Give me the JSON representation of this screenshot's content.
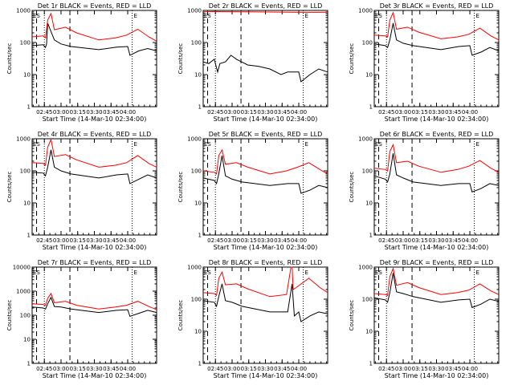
{
  "colors": {
    "events": "#000000",
    "lld": "#ff0000",
    "axes": "#000000",
    "background": "#ffffff"
  },
  "chart_data": [
    {
      "type": "line",
      "title": "Det 1r BLACK = Events, RED = LLD",
      "ylabel": "Counts/sec",
      "xlabel": "Start Time (14-Mar-10 02:34:00)",
      "yscale": "log",
      "ylim": [
        1,
        1000
      ],
      "ytick_labels": [
        "1",
        "10",
        "100",
        "1000"
      ],
      "xtick_labels": [
        "02:45",
        "03:00",
        "03:15",
        "03:30",
        "03:45",
        "04:00"
      ],
      "markers": [
        "ES",
        "E"
      ],
      "series": [
        {
          "name": "Events",
          "x": [
            0,
            10,
            12,
            13,
            14,
            20,
            26,
            35,
            60,
            76,
            86,
            88,
            96,
            104,
            112
          ],
          "y": [
            80,
            85,
            70,
            90,
            400,
            120,
            90,
            75,
            60,
            72,
            75,
            40,
            55,
            65,
            55
          ]
        },
        {
          "name": "LLD",
          "x": [
            0,
            10,
            12,
            14,
            17,
            20,
            30,
            40,
            60,
            75,
            85,
            95,
            105,
            112
          ],
          "y": [
            150,
            160,
            140,
            500,
            800,
            250,
            300,
            200,
            120,
            140,
            170,
            260,
            150,
            110
          ]
        }
      ]
    },
    {
      "type": "line",
      "title": "Det 2r BLACK = Events, RED = LLD",
      "ylabel": "Counts/sec",
      "xlabel": "Start Time (14-Mar-10 02:34:00)",
      "yscale": "log",
      "ylim": [
        1,
        1000
      ],
      "ytick_labels": [
        "1",
        "10",
        "100",
        "1000"
      ],
      "xtick_labels": [
        "02:45",
        "03:00",
        "03:15",
        "03:30",
        "03:45",
        "04:00"
      ],
      "markers": [
        "ES",
        "E"
      ],
      "series": [
        {
          "name": "Events",
          "x": [
            0,
            5,
            10,
            13,
            15,
            20,
            25,
            30,
            40,
            50,
            60,
            70,
            76,
            86,
            88,
            96,
            104,
            112
          ],
          "y": [
            25,
            22,
            30,
            12,
            22,
            25,
            40,
            30,
            20,
            18,
            15,
            10,
            12,
            12,
            6,
            10,
            15,
            12
          ]
        },
        {
          "name": "LLD",
          "x": [
            0,
            10,
            20,
            40,
            60,
            80,
            100,
            112
          ],
          "y": [
            900,
            920,
            910,
            900,
            890,
            880,
            870,
            880
          ]
        }
      ]
    },
    {
      "type": "line",
      "title": "Det 3r BLACK = Events, RED = LLD",
      "ylabel": "Counts/sec",
      "xlabel": "Start Time (14-Mar-10 02:34:00)",
      "yscale": "log",
      "ylim": [
        1,
        1000
      ],
      "ytick_labels": [
        "1",
        "10",
        "100",
        "1000"
      ],
      "xtick_labels": [
        "02:45",
        "03:00",
        "03:15",
        "03:30",
        "03:45",
        "04:00"
      ],
      "markers": [
        "ES",
        "E"
      ],
      "series": [
        {
          "name": "Events",
          "x": [
            0,
            10,
            12,
            14,
            17,
            20,
            26,
            35,
            60,
            76,
            86,
            88,
            96,
            104,
            112
          ],
          "y": [
            90,
            80,
            70,
            120,
            400,
            120,
            95,
            80,
            60,
            75,
            80,
            40,
            50,
            70,
            55
          ]
        },
        {
          "name": "LLD",
          "x": [
            0,
            10,
            12,
            14,
            17,
            20,
            30,
            40,
            60,
            75,
            85,
            95,
            105,
            112
          ],
          "y": [
            170,
            160,
            150,
            500,
            850,
            260,
            300,
            210,
            130,
            150,
            180,
            280,
            160,
            120
          ]
        }
      ]
    },
    {
      "type": "line",
      "title": "Det 4r BLACK = Events, RED = LLD",
      "ylabel": "Counts/sec",
      "xlabel": "Start Time (14-Mar-10 02:34:00)",
      "yscale": "log",
      "ylim": [
        1,
        1000
      ],
      "ytick_labels": [
        "1",
        "10",
        "100",
        "1000"
      ],
      "xtick_labels": [
        "02:45",
        "03:00",
        "03:15",
        "03:30",
        "03:45",
        "04:00"
      ],
      "markers": [
        "ES",
        "E"
      ],
      "series": [
        {
          "name": "Events",
          "x": [
            0,
            10,
            12,
            14,
            17,
            20,
            26,
            35,
            60,
            76,
            86,
            88,
            96,
            104,
            112
          ],
          "y": [
            90,
            85,
            70,
            130,
            450,
            130,
            100,
            80,
            60,
            75,
            80,
            40,
            55,
            75,
            60
          ]
        },
        {
          "name": "LLD",
          "x": [
            0,
            10,
            12,
            14,
            17,
            20,
            30,
            40,
            60,
            75,
            85,
            95,
            105,
            112
          ],
          "y": [
            180,
            170,
            150,
            550,
            950,
            280,
            320,
            220,
            130,
            150,
            180,
            300,
            170,
            130
          ]
        }
      ]
    },
    {
      "type": "line",
      "title": "Det 5r BLACK = Events, RED = LLD",
      "ylabel": "Counts/sec",
      "xlabel": "Start Time (14-Mar-10 02:34:00)",
      "yscale": "log",
      "ylim": [
        1,
        1000
      ],
      "ytick_labels": [
        "1",
        "10",
        "100",
        "1000"
      ],
      "xtick_labels": [
        "02:45",
        "03:00",
        "03:15",
        "03:30",
        "03:45",
        "04:00"
      ],
      "markers": [
        "ES",
        "E"
      ],
      "series": [
        {
          "name": "Events",
          "x": [
            0,
            10,
            12,
            14,
            17,
            20,
            26,
            35,
            60,
            76,
            86,
            88,
            96,
            104,
            112
          ],
          "y": [
            60,
            50,
            40,
            80,
            300,
            70,
            55,
            45,
            35,
            40,
            40,
            20,
            25,
            35,
            30
          ]
        },
        {
          "name": "LLD",
          "x": [
            0,
            10,
            12,
            14,
            17,
            20,
            30,
            40,
            60,
            75,
            85,
            95,
            105,
            112
          ],
          "y": [
            100,
            90,
            80,
            300,
            450,
            160,
            180,
            130,
            80,
            100,
            130,
            180,
            110,
            80
          ]
        }
      ]
    },
    {
      "type": "line",
      "title": "Det 6r BLACK = Events, RED = LLD",
      "ylabel": "Counts/sec",
      "xlabel": "Start Time (14-Mar-10 02:34:00)",
      "yscale": "log",
      "ylim": [
        1,
        1000
      ],
      "ytick_labels": [
        "1",
        "10",
        "100",
        "1000"
      ],
      "xtick_labels": [
        "02:45",
        "03:00",
        "03:15",
        "03:30",
        "03:45",
        "04:00"
      ],
      "markers": [
        "ES",
        "E"
      ],
      "series": [
        {
          "name": "Events",
          "x": [
            0,
            10,
            12,
            14,
            17,
            20,
            26,
            35,
            60,
            76,
            86,
            88,
            96,
            104,
            112
          ],
          "y": [
            70,
            55,
            45,
            80,
            350,
            75,
            60,
            45,
            35,
            40,
            40,
            22,
            28,
            40,
            35
          ]
        },
        {
          "name": "LLD",
          "x": [
            0,
            10,
            12,
            14,
            17,
            20,
            30,
            40,
            60,
            75,
            85,
            95,
            105,
            112
          ],
          "y": [
            120,
            110,
            100,
            400,
            650,
            180,
            200,
            140,
            90,
            110,
            140,
            210,
            120,
            90
          ]
        }
      ]
    },
    {
      "type": "line",
      "title": "Det 7r BLACK = Events, RED = LLD",
      "ylabel": "Counts/sec",
      "xlabel": "Start Time (14-Mar-10 02:34:00)",
      "yscale": "log",
      "ylim": [
        1,
        10000
      ],
      "ytick_labels": [
        "1",
        "10",
        "100",
        "1000",
        "10000"
      ],
      "xtick_labels": [
        "02:45",
        "03:00",
        "03:15",
        "03:30",
        "03:45",
        "04:00"
      ],
      "markers": [
        "ES",
        "E"
      ],
      "series": [
        {
          "name": "Events",
          "x": [
            0,
            10,
            12,
            14,
            17,
            20,
            26,
            35,
            60,
            76,
            86,
            88,
            96,
            104,
            112
          ],
          "y": [
            220,
            200,
            180,
            300,
            550,
            230,
            220,
            180,
            130,
            160,
            170,
            90,
            120,
            160,
            130
          ]
        },
        {
          "name": "LLD",
          "x": [
            0,
            10,
            12,
            14,
            17,
            20,
            30,
            40,
            60,
            75,
            85,
            95,
            105,
            112
          ],
          "y": [
            300,
            280,
            260,
            500,
            800,
            330,
            380,
            260,
            180,
            220,
            260,
            380,
            230,
            170
          ]
        }
      ]
    },
    {
      "type": "line",
      "title": "Det 8r BLACK = Events, RED = LLD",
      "ylabel": "Counts/sec",
      "xlabel": "Start Time (14-Mar-10 02:34:00)",
      "yscale": "log",
      "ylim": [
        1,
        1000
      ],
      "ytick_labels": [
        "1",
        "10",
        "100",
        "1000"
      ],
      "xtick_labels": [
        "02:45",
        "03:00",
        "03:15",
        "03:30",
        "03:45",
        "04:00"
      ],
      "markers": [
        "ES",
        "E"
      ],
      "series": [
        {
          "name": "Events",
          "x": [
            0,
            10,
            12,
            14,
            17,
            20,
            26,
            35,
            60,
            76,
            80,
            82,
            86,
            88,
            96,
            104,
            112
          ],
          "y": [
            90,
            80,
            60,
            120,
            300,
            90,
            80,
            60,
            40,
            40,
            300,
            30,
            40,
            20,
            30,
            40,
            35
          ]
        },
        {
          "name": "LLD",
          "x": [
            0,
            10,
            12,
            14,
            17,
            20,
            30,
            40,
            60,
            75,
            79,
            80,
            81,
            85,
            95,
            105,
            112
          ],
          "y": [
            160,
            150,
            130,
            450,
            700,
            280,
            300,
            210,
            120,
            140,
            1000,
            1000,
            200,
            250,
            450,
            230,
            160
          ]
        }
      ]
    },
    {
      "type": "line",
      "title": "Det 9r BLACK = Events, RED = LLD",
      "ylabel": "Counts/sec",
      "xlabel": "Start Time (14-Mar-10 02:34:00)",
      "yscale": "log",
      "ylim": [
        1,
        1000
      ],
      "ytick_labels": [
        "1",
        "10",
        "100",
        "1000"
      ],
      "xtick_labels": [
        "02:45",
        "03:00",
        "03:15",
        "03:30",
        "03:45",
        "04:00"
      ],
      "markers": [
        "ES",
        "E"
      ],
      "series": [
        {
          "name": "Events",
          "x": [
            0,
            10,
            12,
            14,
            17,
            20,
            26,
            35,
            60,
            76,
            86,
            88,
            96,
            104,
            112
          ],
          "y": [
            110,
            95,
            80,
            160,
            650,
            170,
            150,
            120,
            80,
            95,
            100,
            55,
            70,
            100,
            85
          ]
        },
        {
          "name": "LLD",
          "x": [
            0,
            10,
            12,
            14,
            17,
            20,
            30,
            40,
            60,
            75,
            85,
            95,
            105,
            112
          ],
          "y": [
            150,
            140,
            130,
            500,
            900,
            270,
            330,
            230,
            140,
            160,
            190,
            300,
            180,
            140
          ]
        }
      ]
    }
  ]
}
